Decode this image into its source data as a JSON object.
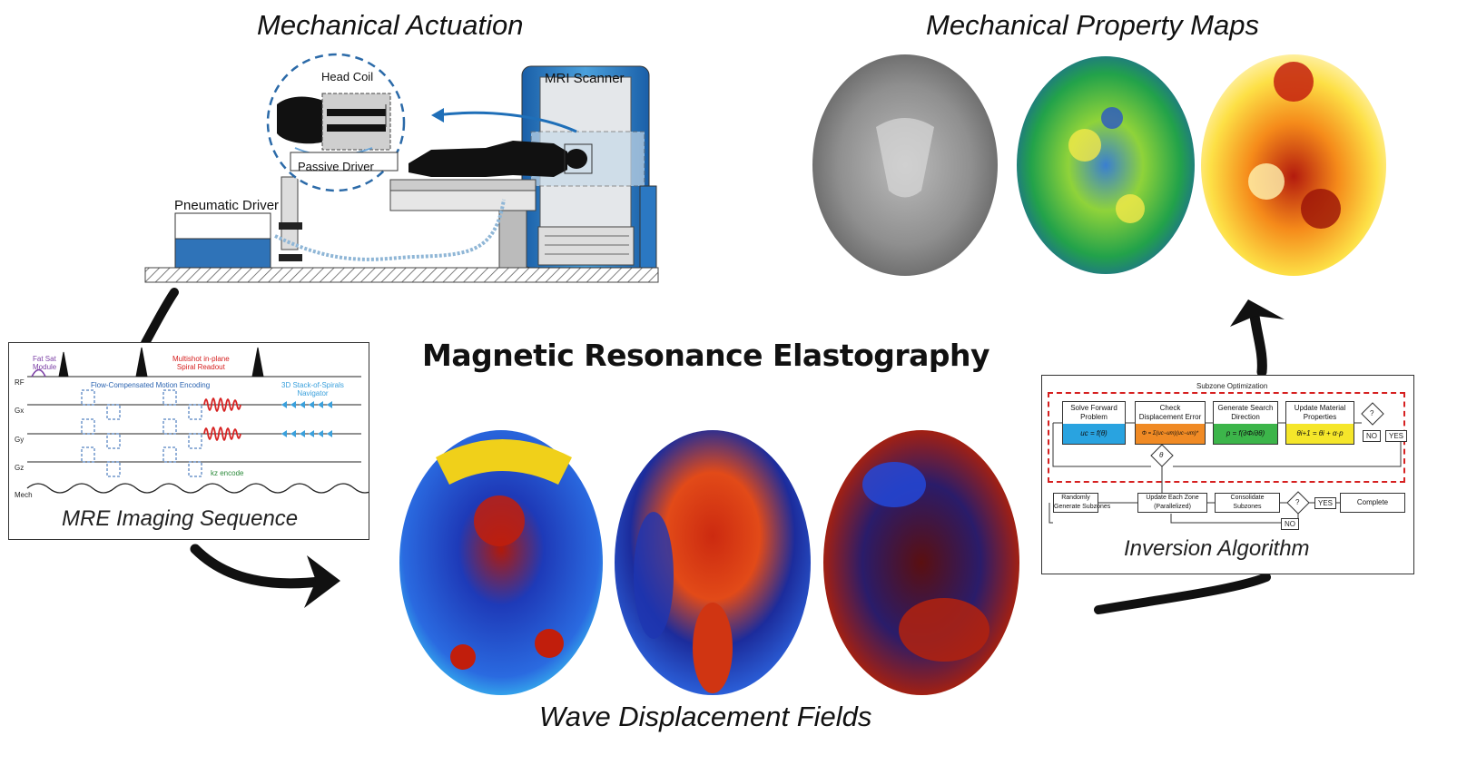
{
  "main_title": "Magnetic Resonance Elastography",
  "actuation": {
    "title": "Mechanical Actuation",
    "mri_scanner": "MRI Scanner",
    "head_coil": "Head Coil",
    "passive_driver": "Passive Driver",
    "pneumatic_driver": "Pneumatic Driver"
  },
  "property_maps": {
    "title": "Mechanical Property Maps"
  },
  "sequence": {
    "title": "MRE Imaging Sequence",
    "fat_sat": "Fat Sat\nModule",
    "multishot": "Multishot in-plane\nSpiral Readout",
    "flow_comp": "Flow-Compensated Motion Encoding",
    "stack_spirals": "3D Stack-of-Spirals\nNavigator",
    "kz_encode": "kz encode",
    "rows": [
      "RF",
      "Gx",
      "Gy",
      "Gz",
      "Mech"
    ]
  },
  "wave": {
    "title": "Wave Displacement Fields"
  },
  "inversion": {
    "title": "Inversion Algorithm",
    "subzone": "Subzone Optimization",
    "boxes": [
      {
        "label": "Solve Forward\nProblem",
        "eq": "uc = f(θ)",
        "color": "#29a3e0"
      },
      {
        "label": "Check\nDisplacement Error",
        "eq": "Φ = Σ(uc−um)(uc−um)*",
        "color": "#f08a24"
      },
      {
        "label": "Generate Search\nDirection",
        "eq": "p = f(∂Φ/∂θ)",
        "color": "#3cb54a"
      },
      {
        "label": "Update Material\nProperties",
        "eq": "θi+1 = θi + α·p",
        "color": "#f5e62a"
      }
    ],
    "q": "?",
    "no": "NO",
    "yes": "YES",
    "theta": "θ",
    "bottom": [
      "Randomly\nGenerate Subzones",
      "Update Each Zone\n(Parallelized)",
      "Consolidate\nSubzones",
      "Complete"
    ]
  }
}
